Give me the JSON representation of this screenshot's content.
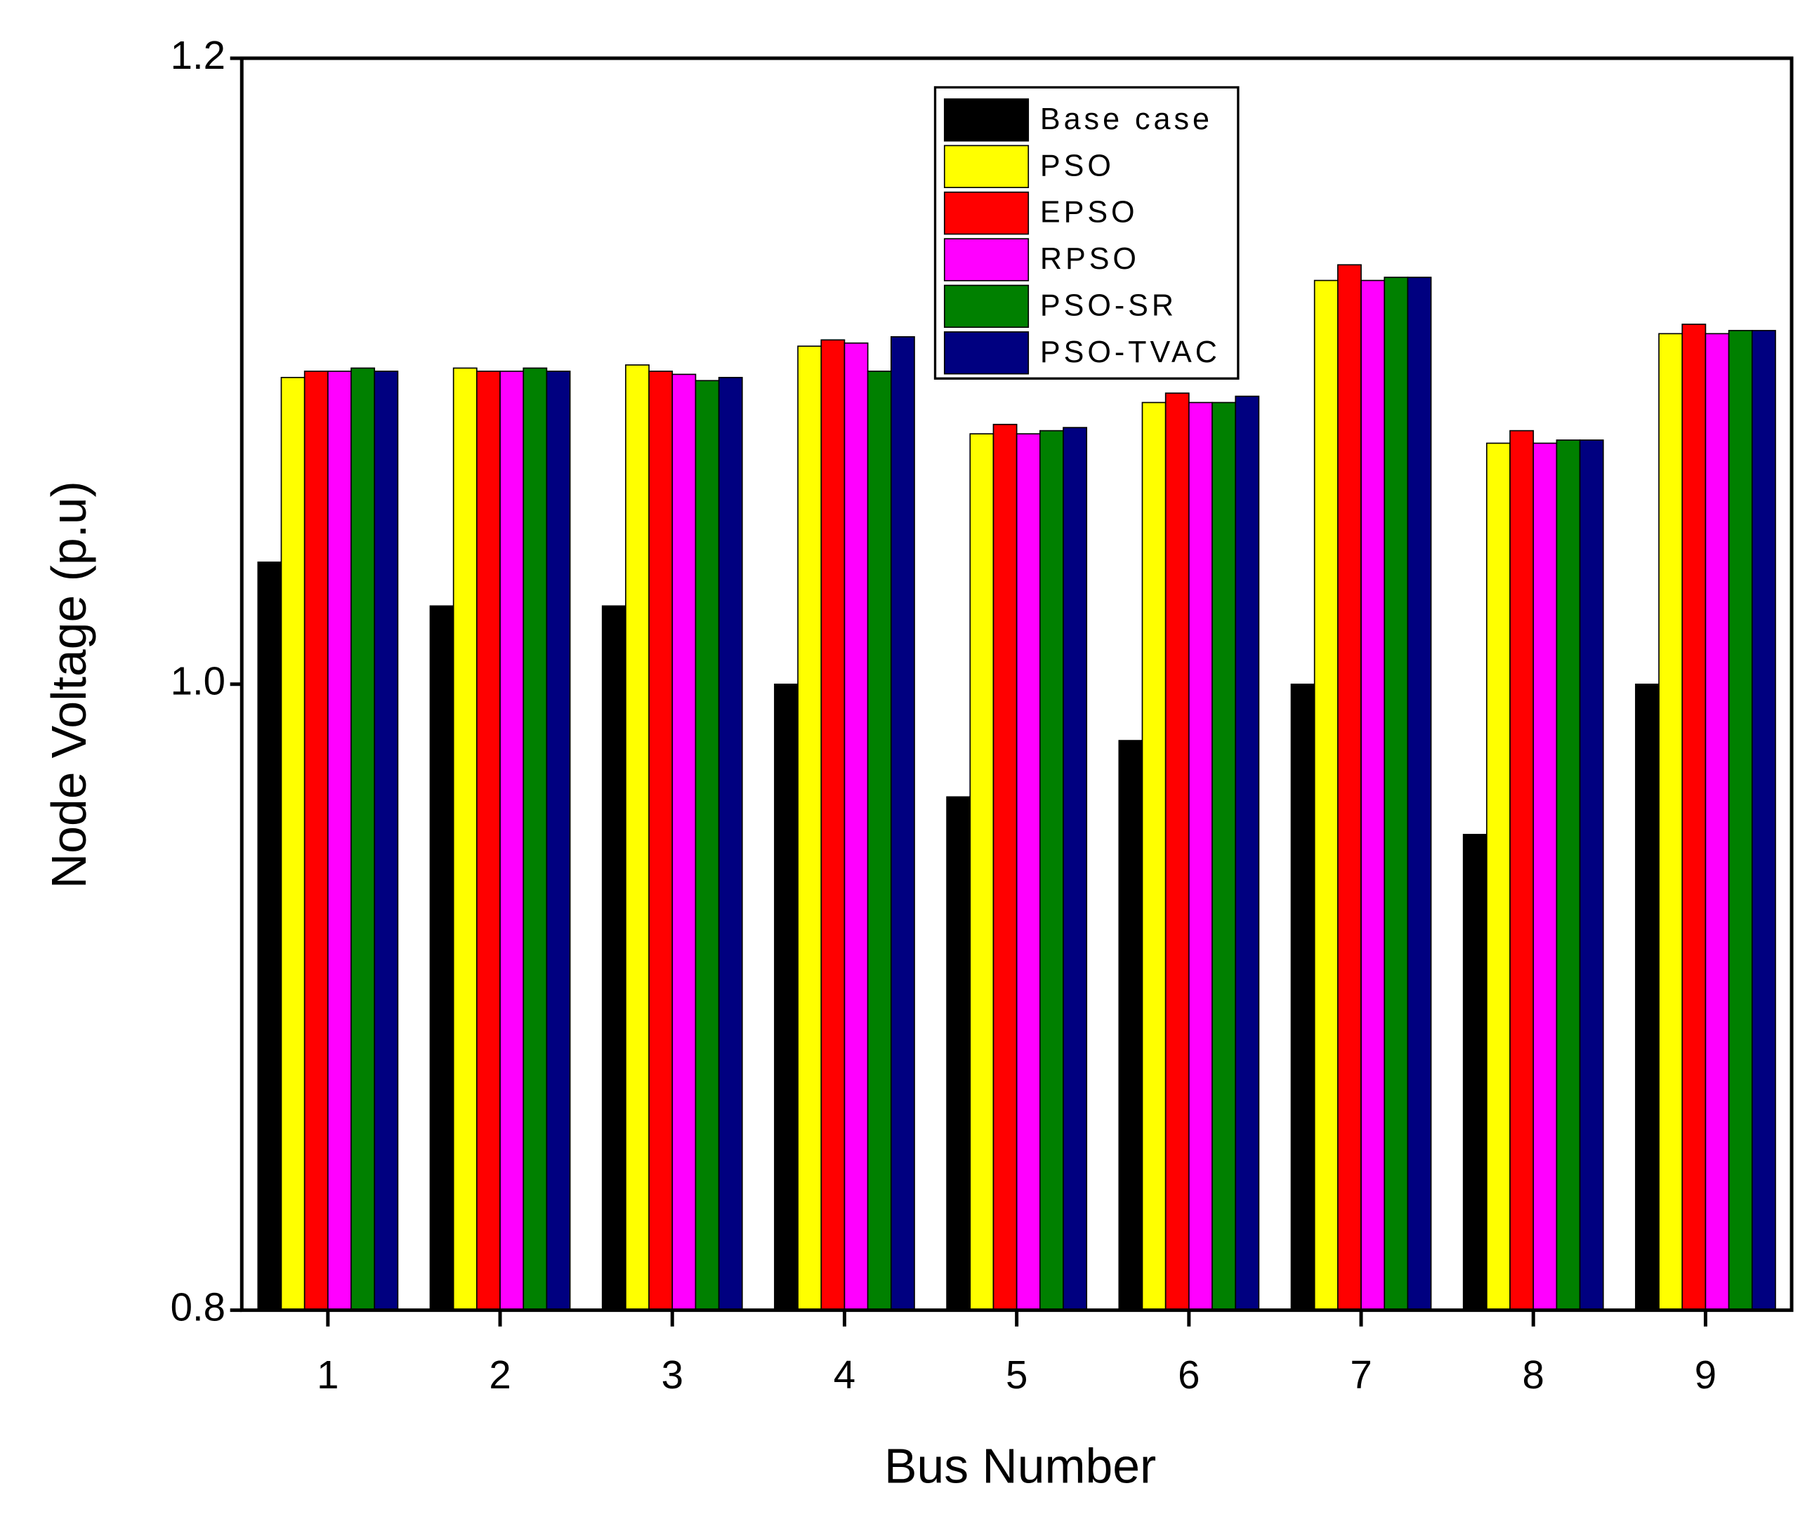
{
  "chart_data": {
    "type": "bar",
    "x_label": "Bus Number",
    "y_label": "Node Voltage (p.u)",
    "categories": [
      "1",
      "2",
      "3",
      "4",
      "5",
      "6",
      "7",
      "8",
      "9"
    ],
    "series": [
      {
        "name": "Base case",
        "color": "#000000",
        "values": [
          1.039,
          1.025,
          1.025,
          1.0,
          0.964,
          0.982,
          1.0,
          0.952,
          1.0
        ]
      },
      {
        "name": "PSO",
        "color": "#ffff00",
        "values": [
          1.098,
          1.101,
          1.102,
          1.108,
          1.08,
          1.09,
          1.129,
          1.077,
          1.112
        ]
      },
      {
        "name": "EPSO",
        "color": "#ff0000",
        "values": [
          1.1,
          1.1,
          1.1,
          1.11,
          1.083,
          1.093,
          1.134,
          1.081,
          1.115
        ]
      },
      {
        "name": "RPSO",
        "color": "#ff00ff",
        "values": [
          1.1,
          1.1,
          1.099,
          1.109,
          1.08,
          1.09,
          1.129,
          1.077,
          1.112
        ]
      },
      {
        "name": "PSO-SR",
        "color": "#008000",
        "values": [
          1.101,
          1.101,
          1.097,
          1.1,
          1.081,
          1.09,
          1.13,
          1.078,
          1.113
        ]
      },
      {
        "name": "PSO-TVAC",
        "color": "#000080",
        "values": [
          1.1,
          1.1,
          1.098,
          1.111,
          1.082,
          1.092,
          1.13,
          1.078,
          1.113
        ]
      }
    ],
    "ylim": [
      0.8,
      1.2
    ],
    "yticks": [
      0.8,
      {
        "value": 1.0,
        "label": "1.0"
      },
      1.2
    ],
    "legend": "top-center"
  }
}
